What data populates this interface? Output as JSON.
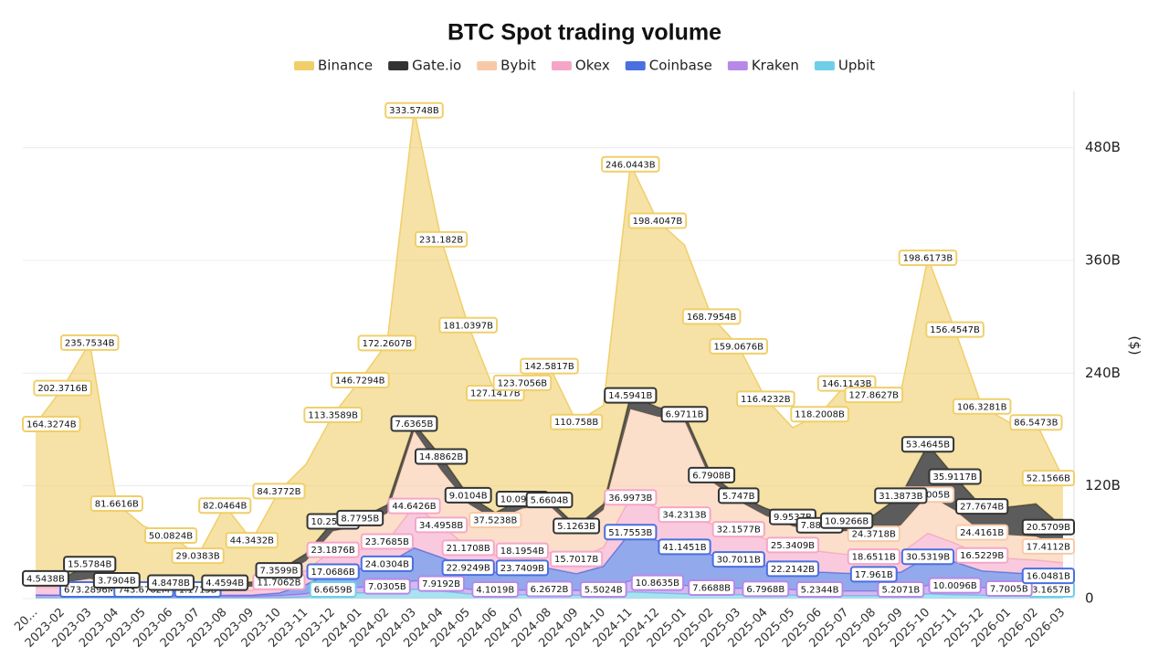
{
  "chart_data": {
    "type": "stacked-area",
    "title": "BTC Spot trading volume",
    "y_label": "($)",
    "categories": [
      "20...",
      "2023-02",
      "2023-03",
      "2023-04",
      "2023-05",
      "2023-06",
      "2023-07",
      "2023-08",
      "2023-09",
      "2023-10",
      "2023-11",
      "2023-12",
      "2024-01",
      "2024-02",
      "2024-03",
      "2024-04",
      "2024-05",
      "2024-06",
      "2024-07",
      "2024-08",
      "2024-09",
      "2024-10",
      "2024-11",
      "2024-12",
      "2025-01",
      "2025-02",
      "2025-03",
      "2025-04",
      "2025-05",
      "2025-06",
      "2025-07",
      "2025-08",
      "2025-09",
      "2025-10",
      "2025-11",
      "2025-12",
      "2026-01",
      "2026-02",
      "2026-03"
    ],
    "ylim": [
      0,
      540
    ],
    "yticks": [
      0,
      {
        "value": 120,
        "label": "120B"
      },
      {
        "value": 240,
        "label": "240B"
      },
      {
        "value": 360,
        "label": "360B"
      },
      {
        "value": 480,
        "label": "480B"
      }
    ],
    "y_axis_side": "right",
    "grid": true,
    "legend": "top",
    "series": [
      {
        "name": "Binance",
        "color": "#f0cf6a",
        "values": [
          164.3274,
          202.3716,
          235.7534,
          81.6616,
          60,
          50.0824,
          29.0383,
          82.0464,
          44.3432,
          84.3772,
          95,
          113.3589,
          146.7294,
          172.2607,
          333.5748,
          231.182,
          181.0397,
          127.1417,
          123.7056,
          142.5817,
          110.758,
          105,
          246.0443,
          198.4047,
          180,
          168.7954,
          159.0676,
          116.4232,
          95,
          118.2008,
          146.1143,
          127.8627,
          110,
          198.6173,
          156.4547,
          106.3281,
          90,
          86.5473,
          52.1566
        ],
        "value_labels": [
          "164.3274B",
          "202.3716B",
          "235.7534B",
          "81.6616B",
          null,
          "50.0824B",
          "29.0383B",
          "82.0464B",
          "44.3432B",
          "84.3772B",
          null,
          "113.3589B",
          "146.7294B",
          "172.2607B",
          "333.5748B",
          "231.182B",
          "181.0397B",
          "127.1417B",
          "123.7056B",
          "142.5817B",
          "110.758B",
          null,
          "246.0443B",
          "198.4047B",
          null,
          "168.7954B",
          "159.0676B",
          "116.4232B",
          null,
          "118.2008B",
          "146.1143B",
          "127.8627B",
          null,
          "198.6173B",
          "156.4547B",
          "106.3281B",
          null,
          "86.5473B",
          "52.1566B"
        ]
      },
      {
        "name": "Gate.io",
        "color": "#333333",
        "values": [
          4.5438,
          5,
          15.5784,
          3.7904,
          4,
          4.8478,
          4,
          4.4594,
          5,
          7.3599,
          8,
          10.2554,
          8.7795,
          9,
          7.6365,
          14.8862,
          9.0104,
          8,
          10.0918,
          5.6604,
          5.1263,
          6,
          14.5941,
          10,
          6.9711,
          6.7908,
          5.747,
          8,
          9.9537,
          7.8872,
          10.9266,
          20,
          31.3873,
          53.4645,
          35.9117,
          27.7674,
          30,
          35,
          20.5709
        ],
        "value_labels": [
          "4.5438B",
          null,
          "15.5784B",
          "3.7904B",
          null,
          "4.8478B",
          null,
          "4.4594B",
          null,
          "7.3599B",
          null,
          "10.2554B",
          "8.7795B",
          null,
          "7.6365B",
          "14.8862B",
          "9.0104B",
          null,
          "10.0918B",
          "5.6604B",
          "5.1263B",
          null,
          "14.5941B",
          null,
          "6.9711B",
          "6.7908B",
          "5.747B",
          null,
          "9.9537B",
          "7.8872B",
          "10.9266B",
          null,
          "31.3873B",
          "53.4645B",
          "35.9117B",
          "27.7674B",
          null,
          null,
          "20.5709B"
        ]
      },
      {
        "name": "Bybit",
        "color": "#f8c9a8",
        "values": [
          5,
          5,
          6,
          5,
          4,
          4,
          4,
          4,
          4,
          5,
          10,
          20,
          25,
          30,
          80,
          58,
          47,
          37.5238,
          45,
          50,
          30,
          40,
          94,
          97,
          100,
          45,
          30,
          25,
          20,
          20,
          25,
          24.3718,
          30,
          41.2005,
          35,
          24.4161,
          25,
          25,
          17.4112
        ],
        "value_labels": [
          null,
          null,
          null,
          null,
          null,
          null,
          null,
          null,
          null,
          null,
          null,
          null,
          null,
          null,
          null,
          null,
          null,
          "37.5238B",
          null,
          null,
          null,
          null,
          null,
          null,
          null,
          null,
          null,
          null,
          null,
          null,
          null,
          "24.3718B",
          null,
          "41.2005B",
          null,
          "24.4161B",
          null,
          null,
          "17.4112B"
        ]
      },
      {
        "name": "Okex",
        "color": "#f5a6c8",
        "values": [
          8,
          8,
          10,
          7,
          6,
          5,
          5,
          5,
          5,
          11.7062,
          15,
          23.1876,
          20,
          23.7685,
          44.6426,
          34.4958,
          21.1708,
          18,
          18.1954,
          17,
          15.7017,
          20,
          36.9973,
          35,
          34.2313,
          33,
          32.1577,
          28,
          25.3409,
          22,
          20,
          18.6511,
          20,
          25,
          20,
          16.5229,
          15,
          15,
          14
        ],
        "value_labels": [
          null,
          null,
          null,
          null,
          null,
          null,
          null,
          null,
          null,
          "11.7062B",
          null,
          "23.1876B",
          null,
          "23.7685B",
          "44.6426B",
          "34.4958B",
          "21.1708B",
          null,
          "18.1954B",
          null,
          "15.7017B",
          null,
          "36.9973B",
          null,
          "34.2313B",
          null,
          "32.1577B",
          null,
          "25.3409B",
          null,
          null,
          "18.6511B",
          null,
          null,
          null,
          "16.5229B",
          null,
          null,
          null
        ]
      },
      {
        "name": "Coinbase",
        "color": "#4a6fe0",
        "values": [
          1,
          0.8,
          0.6732896,
          0.7,
          0.7436762,
          0.9,
          1.1715,
          1.2,
          1.5,
          3,
          10,
          17.0686,
          20,
          24.0304,
          35,
          28,
          22.9249,
          20,
          23.7409,
          22,
          18,
          25,
          51.7553,
          45,
          41.1451,
          35,
          30.7011,
          25,
          22.2142,
          20,
          19,
          17.961,
          20,
          30.5319,
          25,
          18,
          17,
          17,
          16.0481
        ],
        "value_labels": [
          null,
          null,
          "673.2896M",
          null,
          "743.6762M",
          null,
          "1.1715B",
          null,
          null,
          null,
          null,
          "17.0686B",
          null,
          "24.0304B",
          null,
          null,
          "22.9249B",
          null,
          "23.7409B",
          null,
          null,
          null,
          "51.7553B",
          null,
          "41.1451B",
          null,
          "30.7011B",
          null,
          "22.2142B",
          null,
          null,
          "17.961B",
          null,
          "30.5319B",
          null,
          null,
          null,
          null,
          "16.0481B"
        ]
      },
      {
        "name": "Kraken",
        "color": "#b888e8",
        "values": [
          2,
          2,
          3,
          2,
          1.5,
          1.5,
          1.5,
          1.5,
          1.5,
          2,
          3,
          5,
          6,
          7.0305,
          9,
          7.9192,
          5,
          4.1019,
          5,
          6.2672,
          5,
          5.5024,
          12,
          10.8635,
          9,
          7.6688,
          7,
          6.7968,
          6,
          5.2344,
          5,
          5,
          5.2071,
          9,
          10.0096,
          8,
          7.7005,
          6,
          5
        ],
        "value_labels": [
          null,
          null,
          null,
          null,
          null,
          null,
          null,
          null,
          null,
          null,
          null,
          null,
          null,
          "7.0305B",
          null,
          "7.9192B",
          null,
          "4.1019B",
          null,
          "6.2672B",
          null,
          "5.5024B",
          null,
          "10.8635B",
          null,
          "7.6688B",
          null,
          "6.7968B",
          null,
          "5.2344B",
          null,
          null,
          "5.2071B",
          null,
          "10.0096B",
          null,
          "7.7005B",
          null,
          null
        ]
      },
      {
        "name": "Upbit",
        "color": "#6fcfe8",
        "values": [
          1,
          1,
          1.5,
          1,
          0.8,
          0.8,
          0.9,
          0.8,
          0.8,
          1,
          2,
          6.6659,
          6,
          6,
          10,
          8,
          5,
          4,
          4,
          4,
          3.5,
          4,
          7,
          6,
          5,
          4,
          4,
          3.5,
          3.5,
          3,
          3,
          3,
          3,
          5,
          4,
          3.5,
          3,
          3,
          3.1657
        ],
        "value_labels": [
          null,
          null,
          null,
          null,
          null,
          null,
          null,
          null,
          null,
          null,
          null,
          "6.6659B",
          null,
          null,
          null,
          null,
          null,
          null,
          null,
          null,
          null,
          null,
          null,
          null,
          null,
          null,
          null,
          null,
          null,
          null,
          null,
          null,
          null,
          null,
          null,
          null,
          null,
          null,
          "3.1657B"
        ]
      }
    ]
  }
}
